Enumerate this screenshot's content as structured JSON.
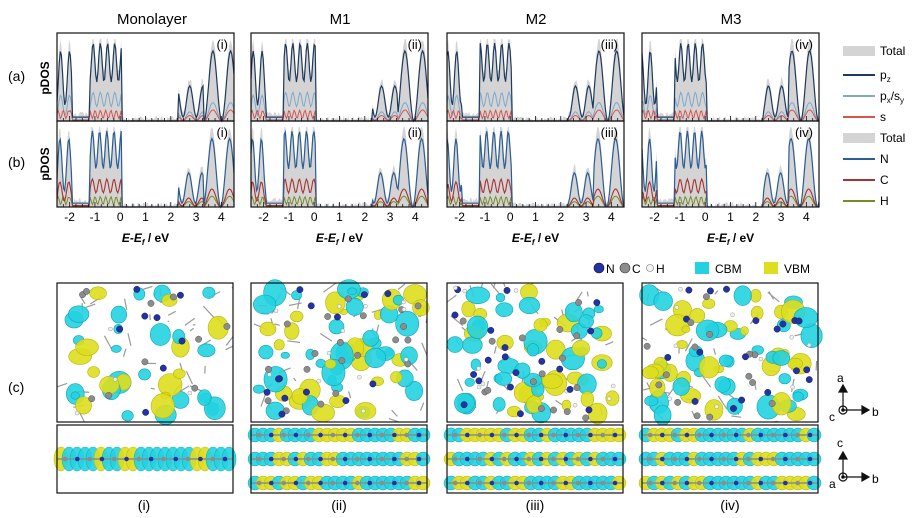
{
  "columns": [
    "Monolayer",
    "M1",
    "M2",
    "M3"
  ],
  "row_labels": {
    "a": "(a)",
    "b": "(b)",
    "c": "(c)"
  },
  "ylabel": "pDOS",
  "xlabel": "E-E",
  "xlabel_sub": "f",
  "xlabel_unit": " / eV",
  "roman": [
    "(i)",
    "(ii)",
    "(iii)",
    "(iv)"
  ],
  "legend_a": [
    "Total",
    "p",
    "p",
    "s"
  ],
  "legend_a_sub": [
    "",
    "z",
    "x",
    "y"
  ],
  "legend_b": [
    "Total",
    "N",
    "C",
    "H"
  ],
  "atom_legend": [
    "N",
    "C",
    "H"
  ],
  "orbital_legend": [
    "CBM",
    "VBM"
  ],
  "axes_top": {
    "a": "a",
    "b": "b",
    "c": "c"
  },
  "axes_bottom": {
    "c": "c",
    "b": "b",
    "a": "a"
  },
  "colors": {
    "total": "#d4d4d4",
    "pz": "#1f3a5f",
    "pxpy": "#7fa8c9",
    "s": "#d9534f",
    "N": "#2b5d95",
    "C": "#a83232",
    "H": "#7a8a2a",
    "cbm": "#24d1e0",
    "vbm": "#dede1e",
    "atom_N": "#2233aa",
    "atom_C": "#8c8c8c",
    "atom_H": "#f0f0f0"
  },
  "chart_data": [
    {
      "type": "area",
      "panel": "a",
      "x_ticks": [
        "-2",
        "-1",
        "0",
        "1",
        "2",
        "3",
        "4"
      ],
      "xlim": [
        -2.5,
        4.5
      ],
      "series": [
        {
          "name": "Total"
        },
        {
          "name": "pz"
        },
        {
          "name": "px/py"
        },
        {
          "name": "s"
        }
      ]
    },
    {
      "type": "area",
      "panel": "b",
      "x_ticks": [
        "-2",
        "-1",
        "0",
        "1",
        "2",
        "3",
        "4"
      ],
      "xlim": [
        -2.5,
        4.5
      ],
      "series": [
        {
          "name": "Total"
        },
        {
          "name": "N"
        },
        {
          "name": "C"
        },
        {
          "name": "H"
        }
      ]
    }
  ]
}
